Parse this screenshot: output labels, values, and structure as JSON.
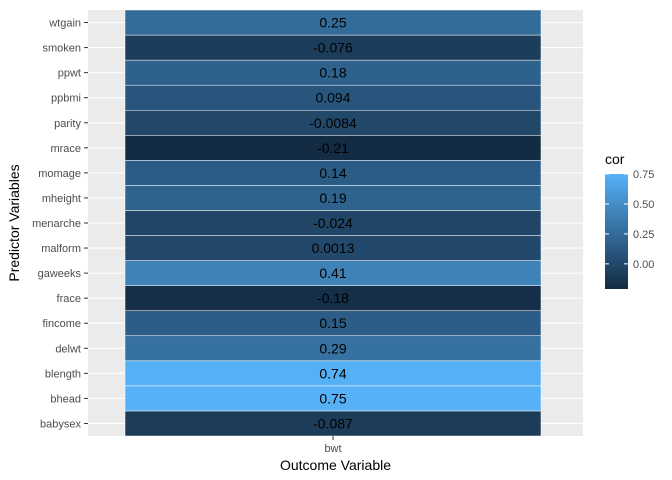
{
  "chart_data": {
    "type": "heatmap",
    "xlabel": "Outcome Variable",
    "ylabel": "Predictor Variables",
    "x_categories": [
      "bwt"
    ],
    "y_categories": [
      "babysex",
      "bhead",
      "blength",
      "delwt",
      "fincome",
      "frace",
      "gaweeks",
      "malform",
      "menarche",
      "mheight",
      "momage",
      "mrace",
      "parity",
      "ppbmi",
      "ppwt",
      "smoken",
      "wtgain"
    ],
    "values": [
      -0.087,
      0.75,
      0.74,
      0.29,
      0.15,
      -0.18,
      0.41,
      0.0013,
      -0.024,
      0.19,
      0.14,
      -0.21,
      -0.0084,
      0.094,
      0.18,
      -0.076,
      0.25
    ],
    "value_labels": [
      "-0.087",
      "0.75",
      "0.74",
      "0.29",
      "0.15",
      "-0.18",
      "0.41",
      "0.0013",
      "-0.024",
      "0.19",
      "0.14",
      "-0.21",
      "-0.0084",
      "0.094",
      "0.18",
      "-0.076",
      "0.25"
    ],
    "legend": {
      "title": "cor",
      "ticks": [
        "0.75",
        "0.50",
        "0.25",
        "0.00"
      ],
      "tick_values": [
        0.75,
        0.5,
        0.25,
        0.0
      ],
      "range": [
        -0.21,
        0.75
      ],
      "low_color": "#132B43",
      "high_color": "#56B1F7",
      "position": "right"
    },
    "grid": true,
    "panel_color": "#EBEBEB"
  }
}
